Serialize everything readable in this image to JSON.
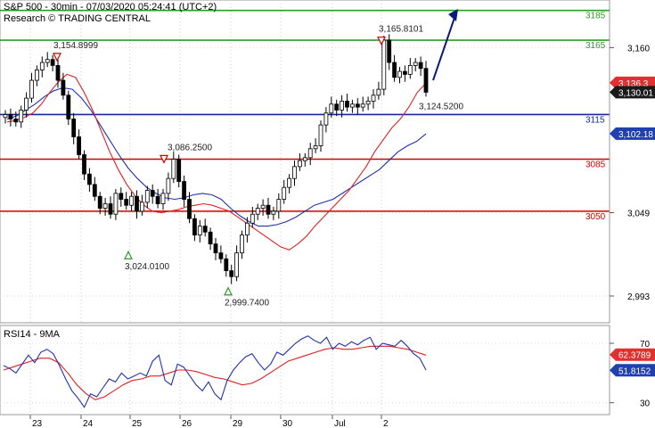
{
  "header": {
    "title": "S&P 500 - 30min - 07/03/2020 05:24:41 (UTC+2)",
    "subtitle": "Research © TRADING CENTRAL"
  },
  "colors": {
    "support_resistance_red": "#d40000",
    "resistance_green": "#2e9a2e",
    "pivot_blue": "#1428a0",
    "ma_fast": "#e02020",
    "ma_slow": "#2030b0",
    "candle": "#000000",
    "arrow": "#0a1a7a",
    "price_badge": "#1a1a1a",
    "ma_badge_red": "#e03030",
    "ma_badge_blue": "#2040b0"
  },
  "chart_data": [
    {
      "type": "candlestick",
      "ylim": [
        2975,
        3192
      ],
      "x_ticks": [
        "23",
        "24",
        "25",
        "26",
        "29",
        "30",
        "Jul",
        "2"
      ],
      "y_ticks": [
        {
          "value": 3160,
          "label": "3,160"
        },
        {
          "value": 3049,
          "label": "3,049"
        },
        {
          "value": 2993,
          "label": "2,993"
        }
      ],
      "levels": [
        {
          "value": 3185,
          "label": "3185",
          "color": "green"
        },
        {
          "value": 3165,
          "label": "3165",
          "color": "green"
        },
        {
          "value": 3115,
          "label": "3115",
          "color": "blue"
        },
        {
          "value": 3085,
          "label": "3085",
          "color": "red"
        },
        {
          "value": 3050,
          "label": "3050",
          "color": "red"
        }
      ],
      "annotations": [
        {
          "text": "3,154.8999",
          "value": 3154.8999,
          "kind": "high"
        },
        {
          "text": "3,086.2500",
          "value": 3086.25,
          "kind": "high"
        },
        {
          "text": "3,165.8101",
          "value": 3165.8101,
          "kind": "high"
        },
        {
          "text": "3,024.0100",
          "value": 3024.01,
          "kind": "low"
        },
        {
          "text": "2,999.7400",
          "value": 2999.74,
          "kind": "low"
        },
        {
          "text": "3,124.5200",
          "value": 3124.52,
          "kind": "label"
        }
      ],
      "price_badges": [
        {
          "text": "3,136.3",
          "value": 3136.3,
          "kind": "ma_fast"
        },
        {
          "text": "3,130.01",
          "value": 3130.01,
          "kind": "price"
        },
        {
          "text": "3,102.18",
          "value": 3102.18,
          "kind": "ma_slow"
        }
      ],
      "close_series": [
        3115,
        3112,
        3110,
        3118,
        3126,
        3138,
        3145,
        3150,
        3152,
        3148,
        3138,
        3128,
        3112,
        3100,
        3088,
        3075,
        3068,
        3060,
        3052,
        3055,
        3048,
        3062,
        3058,
        3054,
        3060,
        3050,
        3056,
        3064,
        3060,
        3055,
        3062,
        3072,
        3085,
        3070,
        3058,
        3045,
        3034,
        3040,
        3036,
        3028,
        3022,
        3018,
        3010,
        3006,
        3022,
        3034,
        3042,
        3048,
        3052,
        3054,
        3048,
        3050,
        3058,
        3066,
        3072,
        3080,
        3084,
        3086,
        3092,
        3094,
        3108,
        3116,
        3122,
        3118,
        3124,
        3120,
        3122,
        3120,
        3122,
        3124,
        3128,
        3132,
        3165,
        3150,
        3140,
        3144,
        3142,
        3148,
        3150,
        3146,
        3130
      ],
      "ma_fast_series": [
        3110,
        3111,
        3113,
        3116,
        3122,
        3130,
        3137,
        3142,
        3140,
        3130,
        3118,
        3104,
        3090,
        3078,
        3068,
        3060,
        3054,
        3050,
        3049,
        3050,
        3051,
        3053,
        3054,
        3055,
        3054,
        3052,
        3050,
        3046,
        3042,
        3038,
        3034,
        3030,
        3026,
        3024,
        3028,
        3033,
        3040,
        3046,
        3052,
        3058,
        3064,
        3072,
        3080,
        3090,
        3098,
        3106,
        3112,
        3120,
        3130,
        3136
      ],
      "ma_slow_series": [
        3112,
        3114,
        3118,
        3122,
        3127,
        3131,
        3133,
        3132,
        3126,
        3118,
        3108,
        3098,
        3088,
        3079,
        3072,
        3066,
        3062,
        3059,
        3058,
        3059,
        3061,
        3062,
        3061,
        3058,
        3052,
        3047,
        3043,
        3040,
        3040,
        3041,
        3043,
        3046,
        3050,
        3054,
        3056,
        3058,
        3062,
        3066,
        3070,
        3074,
        3078,
        3084,
        3090,
        3094,
        3097,
        3102
      ],
      "forecast_arrow": {
        "from": 3138,
        "to": 3186
      }
    },
    {
      "type": "line",
      "title": "RSI14 - 9MA",
      "ylim": [
        22,
        82
      ],
      "y_ticks": [
        {
          "value": 70,
          "label": "70"
        },
        {
          "value": 30,
          "label": "30"
        }
      ],
      "x_ticks": [
        "23",
        "24",
        "25",
        "26",
        "29",
        "30",
        "Jul",
        "2"
      ],
      "badges": [
        {
          "text": "62.3789",
          "value": 62.3789,
          "kind": "ma"
        },
        {
          "text": "51.8152",
          "value": 51.8152,
          "kind": "rsi"
        }
      ],
      "rsi_series": [
        55,
        53,
        50,
        56,
        62,
        57,
        64,
        66,
        63,
        55,
        46,
        38,
        33,
        27,
        36,
        34,
        40,
        46,
        44,
        50,
        46,
        48,
        50,
        48,
        58,
        62,
        45,
        42,
        56,
        54,
        48,
        42,
        38,
        44,
        36,
        32,
        45,
        52,
        57,
        61,
        63,
        57,
        52,
        56,
        64,
        62,
        66,
        70,
        73,
        75,
        72,
        70,
        74,
        66,
        70,
        68,
        71,
        69,
        72,
        74,
        66,
        70,
        69,
        68,
        72,
        68,
        63,
        60,
        52
      ],
      "rsi_ma_series": [
        52,
        54,
        56,
        58,
        60,
        60,
        57,
        50,
        42,
        36,
        32,
        34,
        38,
        42,
        45,
        46,
        48,
        48,
        50,
        52,
        52,
        51,
        49,
        47,
        46,
        44,
        42,
        43,
        46,
        50,
        54,
        58,
        60,
        62,
        64,
        66,
        67,
        66,
        66,
        67,
        68,
        68,
        68,
        67,
        66,
        64,
        62
      ]
    }
  ]
}
